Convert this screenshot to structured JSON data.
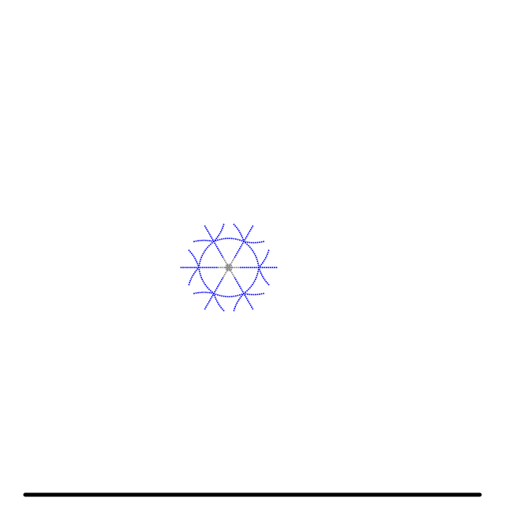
{
  "scene": {
    "background_color": "#ffffff",
    "ground": {
      "color": "#000000"
    },
    "particle_cluster": {
      "shape": "hexagonal snowflake of dotted arcs",
      "primary_color": "#0000ff",
      "core_color": "#808080"
    }
  }
}
